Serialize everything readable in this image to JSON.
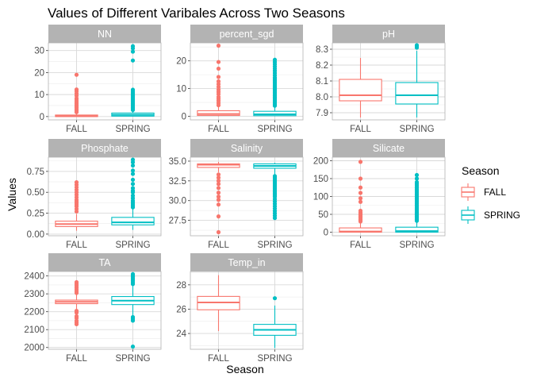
{
  "chart_data": {
    "type": "boxplot",
    "title": "Values of Different Varibales Across Two Seasons",
    "xlabel": "Season",
    "ylabel": "Values",
    "legend": {
      "title": "Season",
      "placement": "right",
      "entries": [
        {
          "name": "FALL",
          "color": "#F8766D"
        },
        {
          "name": "SPRING",
          "color": "#00BFC4"
        }
      ]
    },
    "categories": [
      "FALL",
      "SPRING"
    ],
    "grid": true,
    "panels": [
      {
        "name": "NN",
        "ylim": [
          -1.5,
          33.5
        ],
        "yticks": [
          0,
          10,
          20,
          30
        ],
        "boxes": [
          {
            "season": "FALL",
            "q1": 0,
            "median": 0.2,
            "q3": 0.7,
            "whisker_low": 0,
            "whisker_high": 1.5,
            "outliers": [
              2,
              2.7,
              3.3,
              4,
              4.6,
              5.3,
              6,
              6.7,
              7.5,
              8.3,
              9.5,
              10.5,
              11.5,
              12.3,
              19
            ]
          },
          {
            "season": "SPRING",
            "q1": 0.2,
            "median": 0.8,
            "q3": 1.6,
            "whisker_low": 0,
            "whisker_high": 2.5,
            "outliers": [
              3,
              3.6,
              4.2,
              4.8,
              5.4,
              6,
              6.6,
              7.2,
              7.8,
              8.4,
              9,
              9.6,
              10.2,
              10.8,
              11.5,
              12.2,
              25.5,
              29.5,
              31,
              32
            ]
          }
        ]
      },
      {
        "name": "percent_sgd",
        "ylim": [
          -1.3,
          26.5
        ],
        "yticks": [
          0,
          10,
          20
        ],
        "boxes": [
          {
            "season": "FALL",
            "q1": 0.3,
            "median": 0.8,
            "q3": 2,
            "whisker_low": 0,
            "whisker_high": 3.5,
            "outliers": [
              4,
              4.8,
              5.6,
              6.3,
              7,
              8,
              8.8,
              9.6,
              10.6,
              11.6,
              12.6,
              14.2,
              17.2,
              19.6,
              25.5
            ]
          },
          {
            "season": "SPRING",
            "q1": 0.2,
            "median": 0.7,
            "q3": 1.8,
            "whisker_low": 0,
            "whisker_high": 3.2,
            "outliers": [
              3.8,
              4.4,
              5,
              5.6,
              6.2,
              6.8,
              7.4,
              8,
              8.6,
              9.2,
              9.8,
              10.4,
              11,
              11.6,
              12.2,
              12.8,
              13.4,
              14,
              14.8,
              15.6,
              16.4,
              17.2,
              18,
              18.8,
              19.6,
              20.4
            ]
          }
        ]
      },
      {
        "name": "pH",
        "ylim": [
          7.855,
          8.34
        ],
        "yticks": [
          7.9,
          8.0,
          8.1,
          8.2,
          8.3
        ],
        "ytick_labels": [
          "7.9",
          "8.0",
          "8.1",
          "8.2",
          "8.3"
        ],
        "boxes": [
          {
            "season": "FALL",
            "q1": 7.975,
            "median": 8.01,
            "q3": 8.11,
            "whisker_low": 7.87,
            "whisker_high": 8.245,
            "outliers": []
          },
          {
            "season": "SPRING",
            "q1": 7.955,
            "median": 8.01,
            "q3": 8.09,
            "whisker_low": 7.87,
            "whisker_high": 8.29,
            "outliers": [
              8.31,
              8.32,
              8.325
            ]
          }
        ]
      },
      {
        "name": "Phosphate",
        "ylim": [
          -0.02,
          0.92
        ],
        "yticks": [
          0.0,
          0.25,
          0.5,
          0.75
        ],
        "ytick_labels": [
          "0.00",
          "0.25",
          "0.50",
          "0.75"
        ],
        "boxes": [
          {
            "season": "FALL",
            "q1": 0.09,
            "median": 0.12,
            "q3": 0.155,
            "whisker_low": 0.04,
            "whisker_high": 0.24,
            "outliers": [
              0.27,
              0.3,
              0.33,
              0.35,
              0.37,
              0.39,
              0.41,
              0.44,
              0.47,
              0.5,
              0.53,
              0.56,
              0.59,
              0.62
            ]
          },
          {
            "season": "SPRING",
            "q1": 0.11,
            "median": 0.14,
            "q3": 0.2,
            "whisker_low": 0.05,
            "whisker_high": 0.3,
            "outliers": [
              0.32,
              0.34,
              0.36,
              0.38,
              0.4,
              0.43,
              0.46,
              0.5,
              0.52,
              0.55,
              0.6,
              0.65,
              0.72,
              0.76,
              0.82,
              0.86,
              0.89
            ]
          }
        ]
      },
      {
        "name": "Salinity",
        "ylim": [
          25.55,
          35.5
        ],
        "yticks": [
          27.5,
          30.0,
          32.5,
          35.0
        ],
        "ytick_labels": [
          "27.5",
          "30.0",
          "32.5",
          "35.0"
        ],
        "boxes": [
          {
            "season": "FALL",
            "q1": 34.2,
            "median": 34.55,
            "q3": 34.65,
            "whisker_low": 33.6,
            "whisker_high": 34.9,
            "outliers": [
              33.3,
              32.9,
              32.5,
              32.1,
              31.6,
              31,
              30.5,
              30.1,
              29.5,
              28,
              26
            ]
          },
          {
            "season": "SPRING",
            "q1": 34.1,
            "median": 34.4,
            "q3": 34.65,
            "whisker_low": 33.3,
            "whisker_high": 34.8,
            "outliers": [
              33.1,
              32.9,
              32.7,
              32.5,
              32.3,
              32.1,
              31.9,
              31.7,
              31.5,
              31.3,
              31.1,
              30.9,
              30.7,
              30.5,
              30.2,
              29.9,
              29.6,
              29.3,
              29,
              28.7,
              28.4,
              28.1,
              27.8
            ]
          }
        ]
      },
      {
        "name": "Silicate",
        "ylim": [
          -10,
          210
        ],
        "yticks": [
          0,
          50,
          100,
          150,
          200
        ],
        "boxes": [
          {
            "season": "FALL",
            "q1": 0,
            "median": 2,
            "q3": 12,
            "whisker_low": 0,
            "whisker_high": 25,
            "outliers": [
              30,
              33,
              36,
              39,
              42,
              45,
              48,
              51,
              55,
              60,
              85,
              95,
              110,
              125,
              150,
              197
            ]
          },
          {
            "season": "SPRING",
            "q1": 0,
            "median": 3,
            "q3": 14,
            "whisker_low": 0,
            "whisker_high": 28,
            "outliers": [
              32,
              36,
              40,
              44,
              48,
              52,
              56,
              60,
              65,
              70,
              75,
              80,
              85,
              90,
              95,
              100,
              105,
              110,
              115,
              120,
              125,
              130,
              135,
              140,
              150,
              160
            ]
          }
        ]
      },
      {
        "name": "TA",
        "ylim": [
          1990,
          2425
        ],
        "yticks": [
          2000,
          2100,
          2200,
          2300,
          2400
        ],
        "boxes": [
          {
            "season": "FALL",
            "q1": 2245,
            "median": 2255,
            "q3": 2265,
            "whisker_low": 2215,
            "whisker_high": 2295,
            "outliers": [
              2205,
              2195,
              2175,
              2165,
              2150,
              2140,
              2130,
              2305,
              2315,
              2325,
              2335,
              2345,
              2355,
              2365
            ]
          },
          {
            "season": "SPRING",
            "q1": 2240,
            "median": 2262,
            "q3": 2285,
            "whisker_low": 2180,
            "whisker_high": 2345,
            "outliers": [
              2170,
              2160,
              2150,
              2005,
              2355,
              2365,
              2375,
              2385,
              2395,
              2405,
              2410
            ]
          }
        ]
      },
      {
        "name": "Temp_in",
        "ylim": [
          22.7,
          29.1
        ],
        "yticks": [
          24,
          26,
          28
        ],
        "boxes": [
          {
            "season": "FALL",
            "q1": 25.95,
            "median": 26.55,
            "q3": 27.05,
            "whisker_low": 24.2,
            "whisker_high": 28.8,
            "outliers": []
          },
          {
            "season": "SPRING",
            "q1": 23.85,
            "median": 24.3,
            "q3": 24.75,
            "whisker_low": 22.8,
            "whisker_high": 26.3,
            "outliers": [
              26.9
            ]
          }
        ]
      }
    ]
  }
}
